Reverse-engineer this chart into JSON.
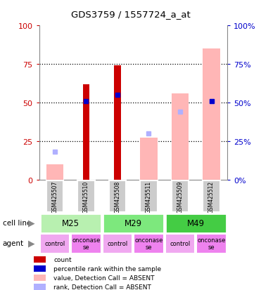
{
  "title": "GDS3759 / 1557724_a_at",
  "samples": [
    "GSM425507",
    "GSM425510",
    "GSM425508",
    "GSM425511",
    "GSM425509",
    "GSM425512"
  ],
  "count_values": [
    0,
    62,
    74,
    0,
    0,
    0
  ],
  "rank_values": [
    0,
    51,
    55,
    0,
    0,
    51
  ],
  "value_absent": [
    10,
    0,
    0,
    27,
    56,
    85
  ],
  "rank_absent": [
    18,
    0,
    0,
    30,
    44,
    51
  ],
  "cell_lines_data": [
    [
      "M25",
      0,
      2
    ],
    [
      "M29",
      2,
      4
    ],
    [
      "M49",
      4,
      6
    ]
  ],
  "cell_line_colors": [
    "#b8f0b0",
    "#7de87d",
    "#44cc44"
  ],
  "agents": [
    "control",
    "onconase",
    "control",
    "onconase",
    "control",
    "onconase"
  ],
  "agent_control_color": "#f0a8f0",
  "agent_onconase_color": "#ee82ee",
  "count_color": "#cc0000",
  "rank_color": "#0000cc",
  "value_absent_color": "#ffb6b6",
  "rank_absent_color": "#b0b0ff",
  "sample_box_color": "#cccccc",
  "ylim": [
    0,
    100
  ],
  "yticks": [
    0,
    25,
    50,
    75,
    100
  ],
  "bar_width": 0.55,
  "narrow_bar_ratio": 0.4,
  "legend_items": [
    {
      "color": "#cc0000",
      "label": "count"
    },
    {
      "color": "#0000cc",
      "label": "percentile rank within the sample"
    },
    {
      "color": "#ffb6b6",
      "label": "value, Detection Call = ABSENT"
    },
    {
      "color": "#b0b0ff",
      "label": "rank, Detection Call = ABSENT"
    }
  ]
}
